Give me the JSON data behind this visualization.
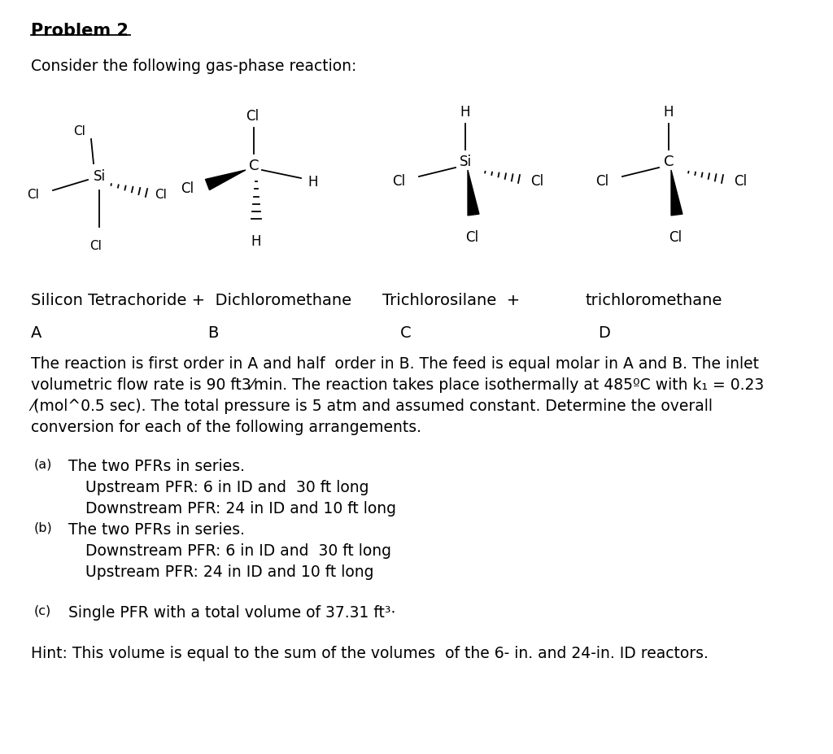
{
  "bg_color": "#ffffff",
  "title": "Problem 2",
  "text_color": "#000000",
  "main_fs": 13.5,
  "small_fs": 11.0,
  "label_fs": 10.5,
  "sub_fs": 11.5,
  "para_lines": [
    "The reaction is first order in A and half  order in B. The feed is equal molar in A and B. The inlet",
    "volumetric flow rate is 90 ft3⁄min. The reaction takes place isothermally at 485ºC with k₁ = 0.23",
    "⁄(mol^0.5 sec). The total pressure is 5 atm and assumed constant. Determine the overall",
    "conversion for each of the following arrangements."
  ],
  "compound_names_left": "Silicon Tetrachoride +  Dichloromethane",
  "compound_names_right1": "Trichlorosilane  +",
  "compound_names_right2": "trichloromethane",
  "hint": "Hint: This volume is equal to the sum of the volumes  of the 6- in. and 24-in. ID reactors."
}
